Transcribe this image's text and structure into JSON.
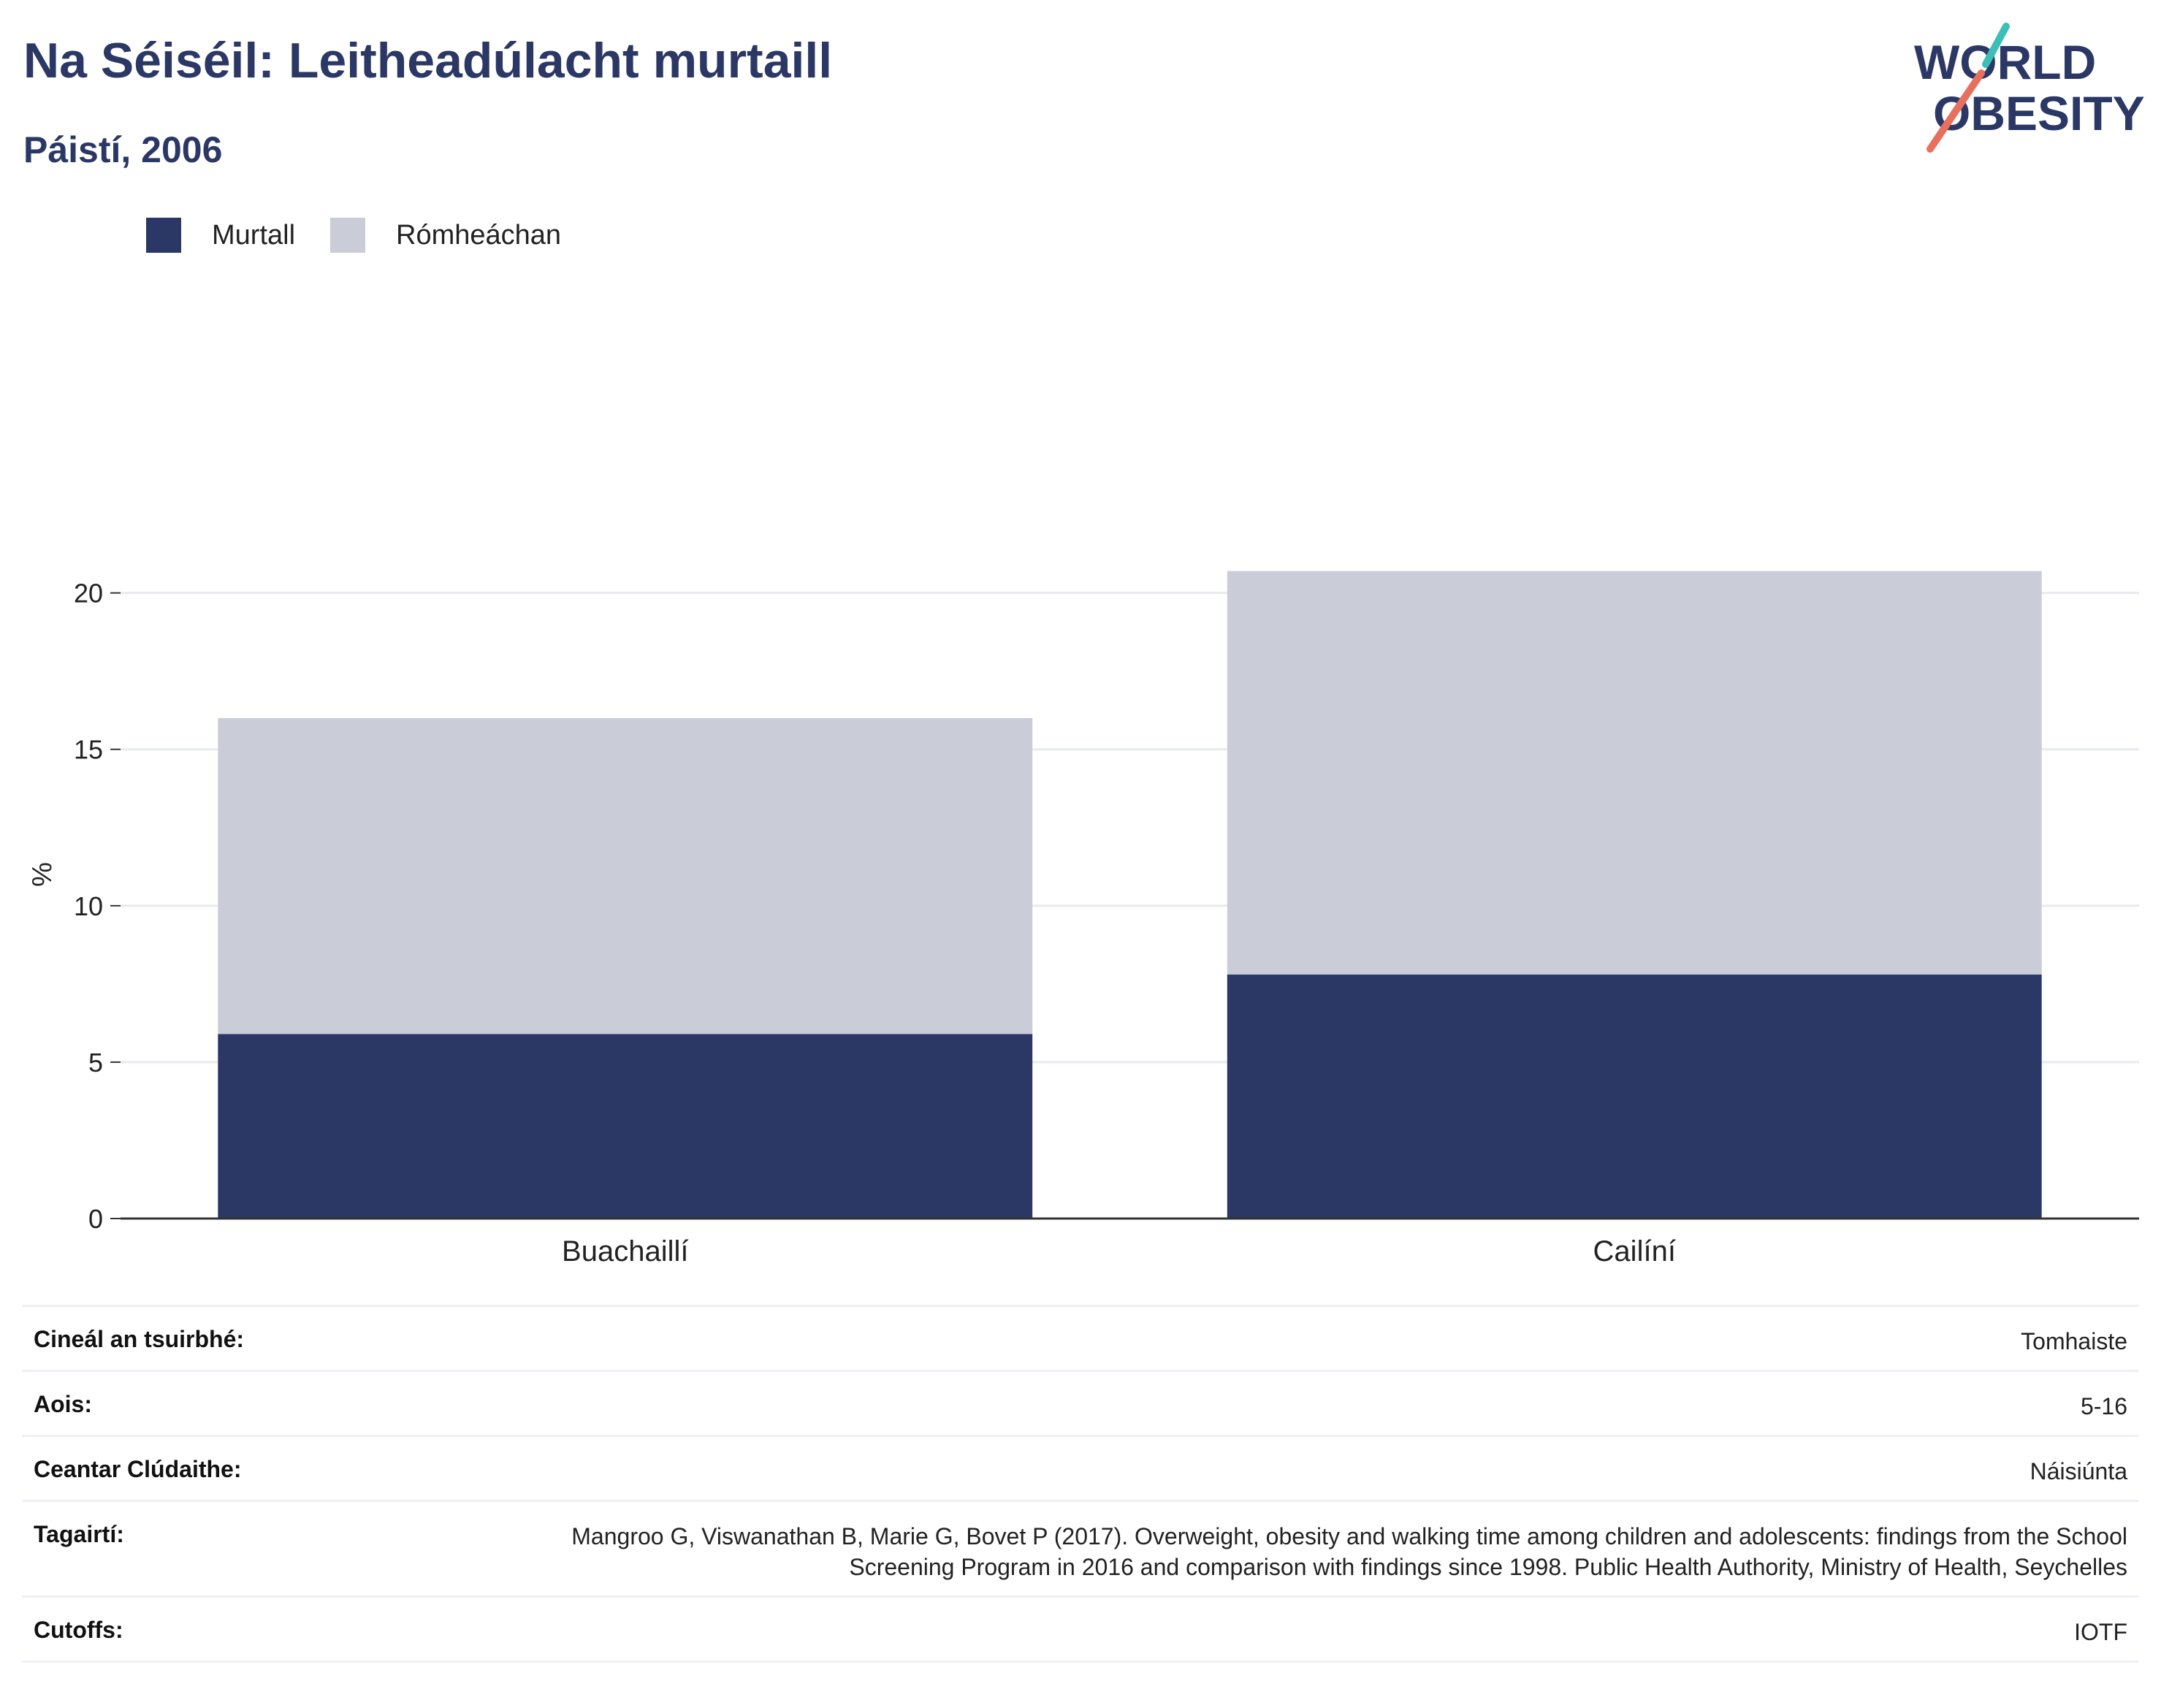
{
  "header": {
    "title": "Na Séiséil: Leitheadúlacht murtaill",
    "subtitle": "Páistí, 2006"
  },
  "logo": {
    "line1": "WORLD",
    "line2": "OBESITY"
  },
  "colors": {
    "obese": "#2b3865",
    "overweight": "#cacdd8",
    "grid": "#e8eaf0",
    "axis": "#333333"
  },
  "chart_data": {
    "type": "bar",
    "stacked": true,
    "categories": [
      "Buachaillí",
      "Cailíní"
    ],
    "series": [
      {
        "name": "Murtall",
        "values": [
          5.9,
          7.8
        ]
      },
      {
        "name": "Rómheáchan",
        "values": [
          10.1,
          12.9
        ]
      }
    ],
    "ylabel": "%",
    "ylim": [
      0,
      22
    ],
    "yticks": [
      0,
      5,
      10,
      15,
      20
    ],
    "grid": true,
    "legend": "top-left"
  },
  "info": {
    "rows": [
      {
        "key": "Cineál an tsuirbhé:",
        "value": "Tomhaiste"
      },
      {
        "key": "Aois:",
        "value": "5-16"
      },
      {
        "key": "Ceantar Clúdaithe:",
        "value": "Náisiúnta"
      },
      {
        "key": "Tagairtí:",
        "value": "Mangroo G, Viswanathan B, Marie G, Bovet P (2017). Overweight, obesity and walking time among children and adolescents: findings from the School Screening Program in 2016 and comparison with findings since 1998. Public Health Authority, Ministry of Health, Seychelles"
      },
      {
        "key": "Cutoffs:",
        "value": "IOTF"
      }
    ]
  }
}
